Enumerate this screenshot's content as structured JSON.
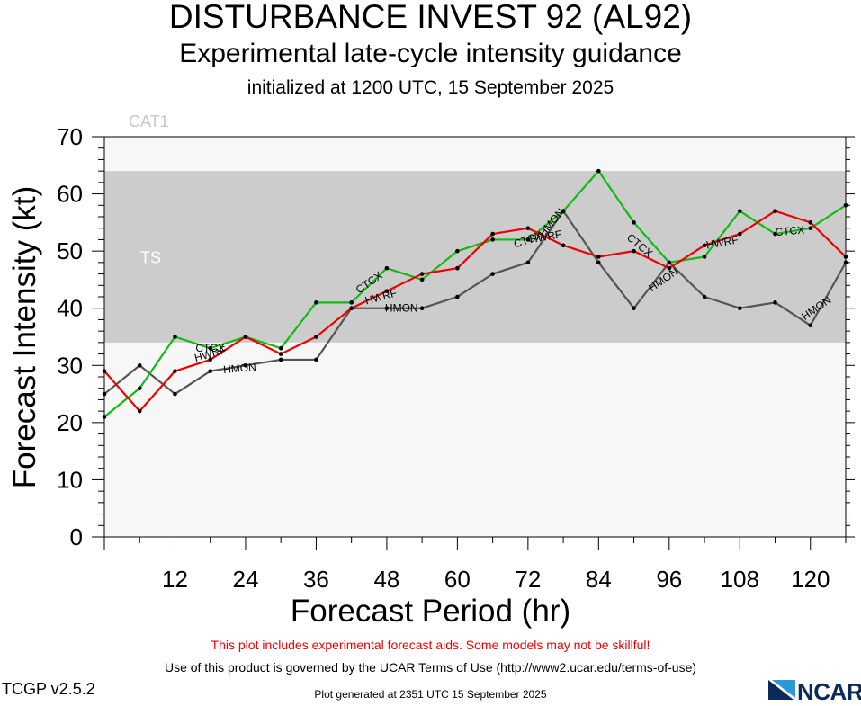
{
  "title": "DISTURBANCE INVEST 92 (AL92)",
  "subtitle": "Experimental late-cycle intensity guidance",
  "subtitle2": "initialized at 1200 UTC, 15 September 2025",
  "notes": {
    "experimental": "This plot includes experimental forecast aids. Some models may not be skillful!",
    "terms": "Use of this product is governed by the UCAR Terms of Use (http://www2.ucar.edu/terms-of-use)",
    "generated": "Plot generated at 2351 UTC   15 September 2025",
    "version": "TCGP v2.5.2"
  },
  "logo_text": "NCAR",
  "colors": {
    "ctcx": "#11bb11",
    "hwrf": "#ee0000",
    "hmon": "#555555",
    "ts_band": "#cccccc",
    "background": "#f7f7f7"
  },
  "chart_data": {
    "type": "line",
    "xlabel": "Forecast Period (hr)",
    "ylabel": "Forecast Intensity (kt)",
    "xlim": [
      0,
      126
    ],
    "ylim": [
      0,
      70
    ],
    "xticks": [
      12,
      24,
      36,
      48,
      60,
      72,
      84,
      96,
      108,
      120
    ],
    "yticks": [
      0,
      10,
      20,
      30,
      40,
      50,
      60,
      70
    ],
    "bands": [
      {
        "name": "CAT1",
        "from": 64,
        "to": 70
      },
      {
        "name": "TS",
        "from": 34,
        "to": 64
      }
    ],
    "series": [
      {
        "name": "CTCX",
        "color": "#11bb11",
        "x": [
          0,
          6,
          12,
          18,
          24,
          30,
          36,
          42,
          48,
          54,
          60,
          66,
          72,
          78,
          84,
          90,
          96,
          102,
          108,
          114,
          120,
          126
        ],
        "y": [
          21,
          26,
          35,
          33,
          35,
          33,
          41,
          41,
          47,
          45,
          50,
          52,
          52,
          57,
          64,
          55,
          48,
          49,
          57,
          53,
          54,
          58
        ],
        "labels": [
          {
            "x": 18,
            "y": 33,
            "angle": 0
          },
          {
            "x": 45,
            "y": 44.5,
            "angle": -35
          },
          {
            "x": 72,
            "y": 52,
            "angle": -20
          },
          {
            "x": 91,
            "y": 51,
            "angle": 40
          },
          {
            "x": 116.5,
            "y": 53.5,
            "angle": -5
          }
        ]
      },
      {
        "name": "HWRF",
        "color": "#ee0000",
        "x": [
          0,
          6,
          12,
          18,
          24,
          30,
          36,
          42,
          48,
          54,
          60,
          66,
          72,
          78,
          84,
          90,
          96,
          102,
          108,
          114,
          120,
          126
        ],
        "y": [
          29,
          22,
          29,
          31,
          35,
          32,
          35,
          40,
          43,
          46,
          47,
          53,
          54,
          51,
          49,
          50,
          47,
          51,
          53,
          57,
          55,
          49
        ],
        "labels": [
          {
            "x": 18,
            "y": 32,
            "angle": -15
          },
          {
            "x": 47,
            "y": 42,
            "angle": -15
          },
          {
            "x": 75,
            "y": 52.5,
            "angle": -10
          },
          {
            "x": 105,
            "y": 51.5,
            "angle": -10
          }
        ]
      },
      {
        "name": "HMON",
        "color": "#555555",
        "x": [
          0,
          6,
          12,
          18,
          24,
          30,
          36,
          42,
          48,
          54,
          60,
          66,
          72,
          78,
          84,
          90,
          96,
          102,
          108,
          114,
          120,
          126
        ],
        "y": [
          25,
          30,
          25,
          29,
          30,
          31,
          31,
          40,
          40,
          40,
          42,
          46,
          48,
          57,
          48,
          40,
          48,
          42,
          40,
          41,
          37,
          48
        ],
        "labels": [
          {
            "x": 23,
            "y": 29.5,
            "angle": -5
          },
          {
            "x": 50.5,
            "y": 40,
            "angle": 0
          },
          {
            "x": 76,
            "y": 55,
            "angle": -50
          },
          {
            "x": 95,
            "y": 45,
            "angle": -35
          },
          {
            "x": 121,
            "y": 40,
            "angle": -35
          }
        ]
      }
    ]
  }
}
